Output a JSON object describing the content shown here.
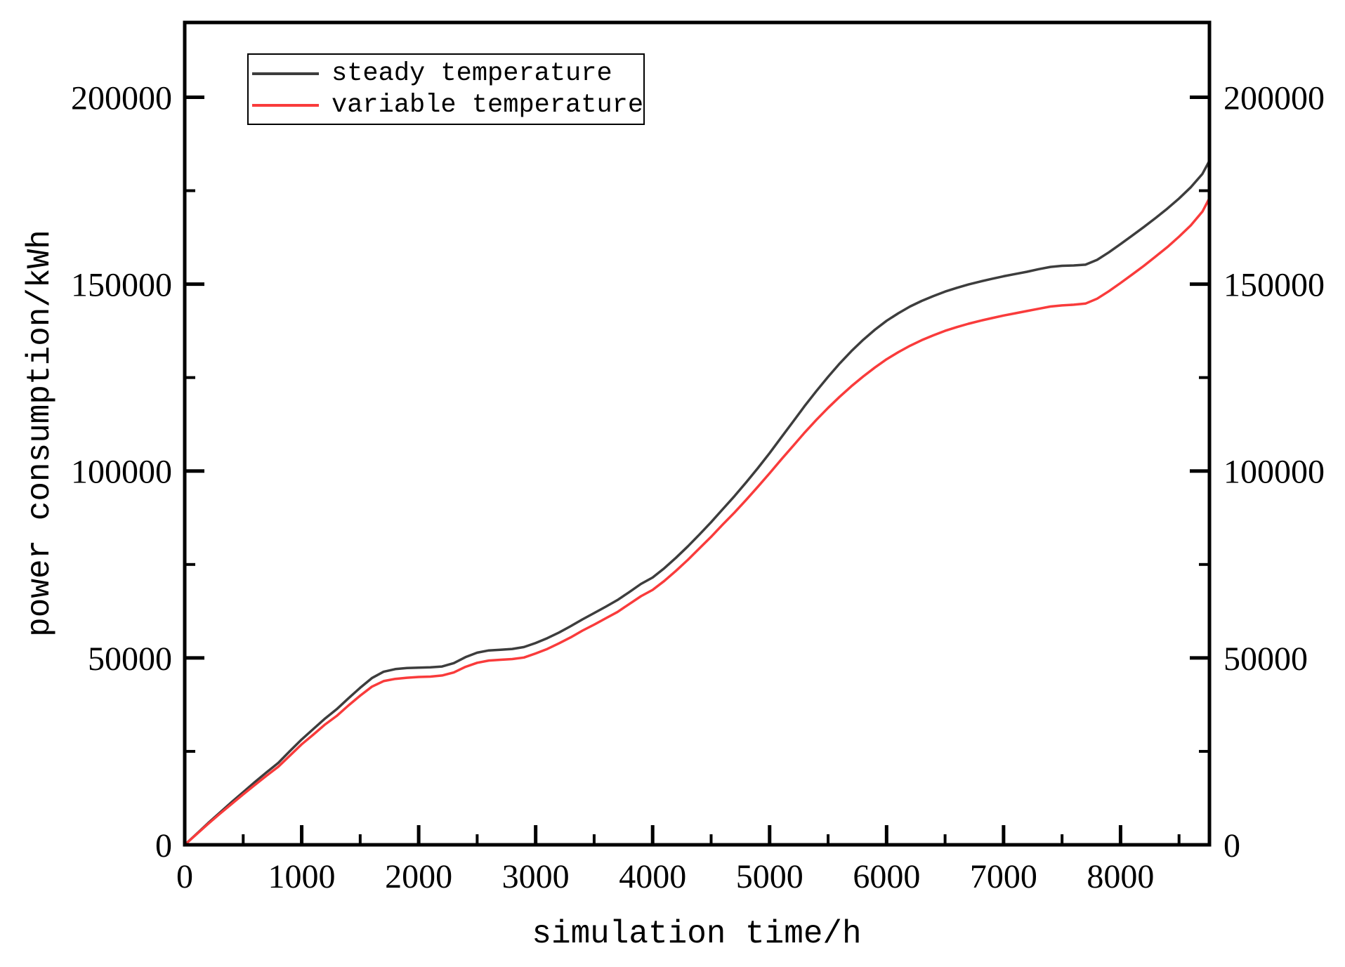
{
  "page": {
    "background": "#ffffff"
  },
  "chart_data": {
    "type": "line",
    "title": "",
    "xlabel": "simulation time/h",
    "ylabel": "power consumption/kWh",
    "xlim": [
      0,
      8760
    ],
    "ylim": [
      0,
      220000
    ],
    "x_major_ticks": [
      0,
      1000,
      2000,
      3000,
      4000,
      5000,
      6000,
      7000,
      8000
    ],
    "x_minor_ticks": [
      500,
      1500,
      2500,
      3500,
      4500,
      5500,
      6500,
      7500,
      8500
    ],
    "y_major_ticks": [
      0,
      50000,
      100000,
      150000,
      200000
    ],
    "y_minor_ticks": [
      25000,
      75000,
      125000,
      175000
    ],
    "grid": false,
    "frame": true,
    "ticks_direction": "in",
    "right_axis_labels": true,
    "legend_position": "top-left",
    "axis_color": "#000000",
    "x": [
      0,
      100,
      200,
      300,
      400,
      500,
      600,
      700,
      800,
      900,
      1000,
      1100,
      1200,
      1300,
      1400,
      1500,
      1600,
      1700,
      1800,
      1900,
      2000,
      2100,
      2200,
      2300,
      2400,
      2500,
      2600,
      2700,
      2800,
      2900,
      3000,
      3100,
      3200,
      3300,
      3400,
      3500,
      3600,
      3700,
      3800,
      3900,
      4000,
      4100,
      4200,
      4300,
      4400,
      4500,
      4600,
      4700,
      4800,
      4900,
      5000,
      5100,
      5200,
      5300,
      5400,
      5500,
      5600,
      5700,
      5800,
      5900,
      6000,
      6100,
      6200,
      6300,
      6400,
      6500,
      6600,
      6700,
      6800,
      6900,
      7000,
      7100,
      7200,
      7300,
      7400,
      7500,
      7600,
      7700,
      7800,
      7900,
      8000,
      8100,
      8200,
      8300,
      8400,
      8500,
      8600,
      8700,
      8760
    ],
    "series": [
      {
        "name": "steady temperature",
        "color": "#3d3d3d",
        "values": [
          0,
          2900,
          5800,
          8600,
          11400,
          14100,
          16800,
          19400,
          21900,
          25100,
          28200,
          31000,
          33800,
          36300,
          39200,
          42000,
          44600,
          46300,
          47000,
          47300,
          47400,
          47500,
          47700,
          48600,
          50200,
          51400,
          52000,
          52200,
          52400,
          52900,
          54000,
          55300,
          56800,
          58500,
          60300,
          62000,
          63700,
          65500,
          67600,
          69800,
          71500,
          74000,
          76800,
          79800,
          83000,
          86300,
          89800,
          93300,
          97000,
          100800,
          104800,
          109000,
          113200,
          117400,
          121400,
          125200,
          128800,
          132100,
          135100,
          137800,
          140200,
          142200,
          144000,
          145500,
          146800,
          148000,
          149000,
          149900,
          150700,
          151400,
          152100,
          152700,
          153300,
          154000,
          154600,
          154900,
          155000,
          155200,
          156500,
          158500,
          160700,
          163000,
          165300,
          167700,
          170200,
          172900,
          175900,
          179500,
          183000
        ]
      },
      {
        "name": "variable temperature",
        "color": "#f93b3b",
        "values": [
          0,
          2800,
          5600,
          8300,
          10900,
          13500,
          16000,
          18500,
          20900,
          23900,
          26900,
          29500,
          32200,
          34500,
          37300,
          39900,
          42300,
          43800,
          44400,
          44700,
          44900,
          45000,
          45300,
          46100,
          47600,
          48700,
          49300,
          49500,
          49700,
          50100,
          51200,
          52400,
          53900,
          55500,
          57300,
          58900,
          60600,
          62300,
          64400,
          66500,
          68200,
          70600,
          73300,
          76200,
          79300,
          82400,
          85700,
          88900,
          92300,
          95800,
          99400,
          103100,
          106700,
          110300,
          113700,
          116900,
          119900,
          122700,
          125300,
          127700,
          129900,
          131800,
          133500,
          135000,
          136300,
          137500,
          138500,
          139400,
          140200,
          140900,
          141600,
          142200,
          142800,
          143400,
          144000,
          144300,
          144500,
          144800,
          146100,
          148100,
          150300,
          152600,
          154900,
          157400,
          159900,
          162700,
          165700,
          169400,
          173000
        ]
      }
    ]
  }
}
